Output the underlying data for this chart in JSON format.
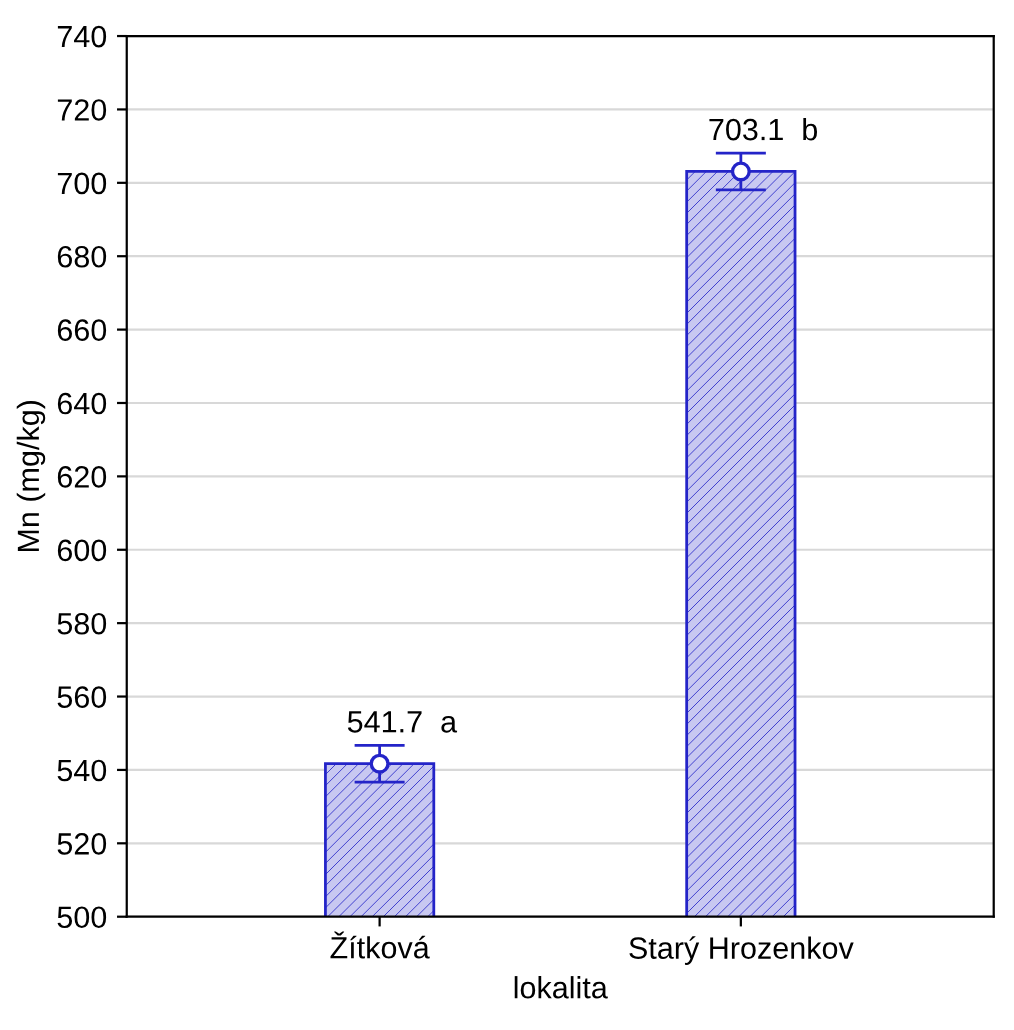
{
  "chart_data": {
    "type": "bar",
    "xlabel": "lokalita",
    "ylabel": "Mn (mg/kg)",
    "categories": [
      "Žítková",
      "Starý Hrozenkov"
    ],
    "series": [
      {
        "color": "#2424c8",
        "values": [
          541.7,
          703.1
        ],
        "value_labels": [
          "541.7  a",
          "703.1  b"
        ]
      },
      {
        "type": "scatter",
        "color": "#2424c8",
        "x": [
          "Žítková",
          "Starý Hrozenkov"
        ],
        "values": [
          541.7,
          703.1
        ],
        "errors": [
          5,
          5
        ]
      }
    ],
    "ylim": [
      500,
      740
    ],
    "yticks": [
      500,
      520,
      540,
      560,
      580,
      600,
      620,
      640,
      660,
      680,
      700,
      720,
      740
    ],
    "grid": "y",
    "marker": "circle"
  }
}
